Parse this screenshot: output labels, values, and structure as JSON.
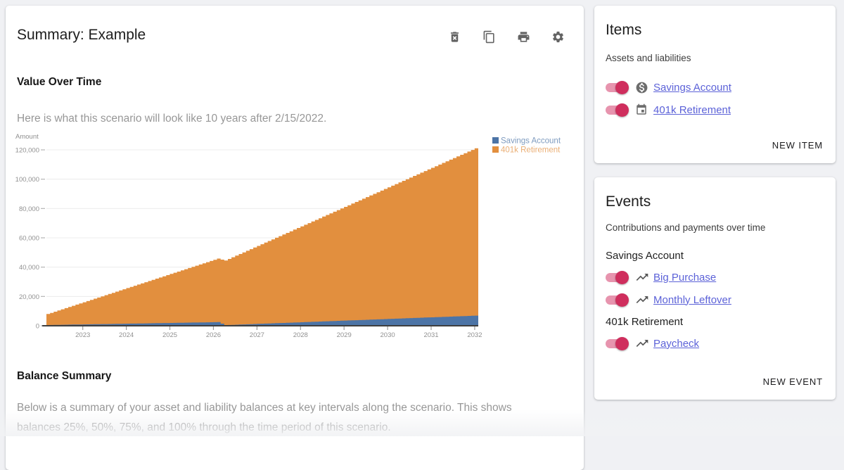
{
  "summary_card": {
    "title": "Summary: Example",
    "toolbar": {
      "delete": "delete",
      "copy": "copy",
      "print": "print",
      "settings": "settings"
    },
    "value_over_time": {
      "heading": "Value Over Time",
      "description": "Here is what this scenario will look like 10 years after 2/15/2022."
    },
    "balance_summary": {
      "heading": "Balance Summary",
      "description": "Below is a summary of your asset and liability balances at key intervals along the scenario. This shows balances 25%, 50%, 75%, and 100% through the time period of this scenario."
    }
  },
  "chart_data": {
    "type": "area",
    "stacked": true,
    "ylabel": "Amount",
    "ylim": [
      0,
      120000
    ],
    "xlim": [
      2022.165,
      2032.082
    ],
    "grid": true,
    "legend_position": "top-right",
    "x_ticks": [
      2023,
      2024,
      2025,
      2026,
      2027,
      2028,
      2029,
      2030,
      2031,
      2032
    ],
    "y_ticks": [
      {
        "value": 0,
        "label": "0"
      },
      {
        "value": 20000,
        "label": "20,000"
      },
      {
        "value": 40000,
        "label": "40,000"
      },
      {
        "value": 60000,
        "label": "60,000"
      },
      {
        "value": 80000,
        "label": "80,000"
      },
      {
        "value": 100000,
        "label": "100,000"
      },
      {
        "value": 120000,
        "label": "120,000"
      }
    ],
    "step_interval": "monthly",
    "series": [
      {
        "name": "Savings Account",
        "color": "#4c74a6",
        "anchors": [
          [
            2022.165,
            500
          ],
          [
            2026.12,
            2500
          ],
          [
            2026.21,
            400
          ],
          [
            2032.082,
            7000
          ]
        ]
      },
      {
        "name": "401k Retirement",
        "color": "#e28f3e",
        "anchors": [
          [
            2022.165,
            7500
          ],
          [
            2026.12,
            43700
          ],
          [
            2026.21,
            43600
          ],
          [
            2032.082,
            115200
          ]
        ]
      }
    ]
  },
  "items_card": {
    "title": "Items",
    "subtitle": "Assets and liabilities",
    "rows": [
      {
        "label": "Savings Account",
        "icon": "dollar-circle",
        "enabled": true
      },
      {
        "label": "401k Retirement",
        "icon": "calendar",
        "enabled": true
      }
    ],
    "action_label": "NEW ITEM"
  },
  "events_card": {
    "title": "Events",
    "subtitle": "Contributions and payments over time",
    "groups": [
      {
        "label": "Savings Account",
        "rows": [
          {
            "label": "Big Purchase",
            "icon": "trending-up",
            "enabled": true
          },
          {
            "label": "Monthly Leftover",
            "icon": "trending-up",
            "enabled": true
          }
        ]
      },
      {
        "label": "401k Retirement",
        "rows": [
          {
            "label": "Paycheck",
            "icon": "trending-up",
            "enabled": true
          }
        ]
      }
    ],
    "action_label": "NEW EVENT"
  },
  "colors": {
    "background": "#f0f1f4",
    "toggle_thumb": "#cf2e5d",
    "toggle_track": "#e794ae",
    "link": "#5c62d8",
    "icon_gray": "#636363",
    "axis_text": "#919191",
    "axis_line": "#3f3f3f",
    "gridline": "#ececec"
  }
}
